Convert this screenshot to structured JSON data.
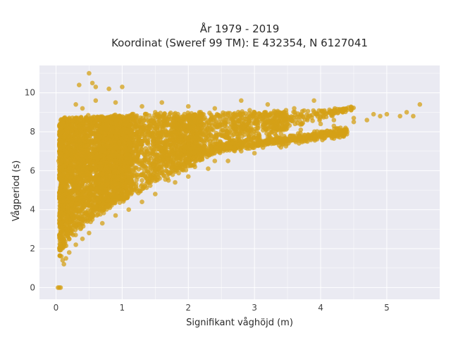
{
  "chart_data": {
    "type": "scatter",
    "title": "År 1979 - 2019",
    "subtitle": "Koordinat (Sweref 99 TM): E 432354, N 6127041",
    "xlabel": "Signifikant våghöjd (m)",
    "ylabel": "Vågperiod (s)",
    "xlim": [
      -0.25,
      5.8
    ],
    "ylim": [
      -0.6,
      11.4
    ],
    "x_ticks": [
      0,
      1,
      2,
      3,
      4,
      5
    ],
    "y_ticks": [
      0,
      2,
      4,
      6,
      8,
      10
    ],
    "x_tick_labels": [
      "0",
      "1",
      "2",
      "3",
      "4",
      "5"
    ],
    "y_tick_labels": [
      "0",
      "2",
      "4",
      "6",
      "8",
      "10"
    ],
    "grid": true,
    "marker_color": "#D4A017",
    "background_color": "#EAEAF2",
    "series": [
      {
        "points": [
          [
            0.03,
            0.0
          ],
          [
            0.05,
            0.0
          ],
          [
            0.07,
            0.0
          ],
          [
            0.08,
            1.6
          ],
          [
            0.06,
            2.4
          ],
          [
            0.05,
            3.3
          ],
          [
            0.06,
            7.9
          ],
          [
            0.07,
            8.2
          ],
          [
            0.05,
            7.0
          ],
          [
            0.04,
            6.5
          ],
          [
            0.1,
            1.4
          ],
          [
            0.12,
            1.2
          ],
          [
            0.15,
            1.5
          ],
          [
            0.2,
            1.8
          ],
          [
            0.3,
            2.2
          ],
          [
            0.4,
            2.5
          ],
          [
            0.5,
            2.8
          ],
          [
            0.7,
            3.3
          ],
          [
            0.9,
            3.7
          ],
          [
            1.1,
            4.0
          ],
          [
            1.3,
            4.4
          ],
          [
            1.5,
            4.8
          ],
          [
            1.8,
            5.4
          ],
          [
            2.0,
            5.7
          ],
          [
            2.3,
            6.1
          ],
          [
            2.6,
            6.5
          ],
          [
            3.0,
            6.9
          ],
          [
            3.4,
            7.2
          ],
          [
            3.8,
            7.5
          ],
          [
            4.0,
            7.8
          ],
          [
            4.1,
            7.9
          ],
          [
            4.3,
            8.2
          ],
          [
            4.5,
            8.5
          ],
          [
            4.7,
            8.6
          ],
          [
            4.9,
            8.8
          ],
          [
            5.0,
            8.9
          ],
          [
            5.2,
            8.8
          ],
          [
            5.4,
            8.8
          ],
          [
            5.5,
            9.4
          ],
          [
            5.3,
            9.0
          ],
          [
            4.8,
            8.9
          ],
          [
            4.5,
            8.7
          ],
          [
            0.5,
            11.0
          ],
          [
            0.55,
            10.5
          ],
          [
            0.6,
            10.3
          ],
          [
            0.35,
            10.4
          ],
          [
            0.8,
            10.2
          ],
          [
            1.0,
            10.3
          ],
          [
            0.3,
            9.4
          ],
          [
            0.4,
            9.2
          ],
          [
            0.6,
            9.6
          ],
          [
            0.9,
            9.5
          ],
          [
            1.3,
            9.3
          ],
          [
            1.6,
            9.5
          ],
          [
            2.0,
            9.3
          ],
          [
            2.4,
            9.2
          ],
          [
            2.8,
            9.6
          ],
          [
            3.2,
            9.4
          ],
          [
            3.6,
            9.2
          ],
          [
            3.9,
            9.6
          ],
          [
            3.0,
            9.0
          ],
          [
            3.4,
            8.9
          ],
          [
            2.2,
            8.8
          ],
          [
            1.5,
            9.0
          ],
          [
            4.2,
            8.3
          ],
          [
            4.4,
            8.0
          ],
          [
            0.2,
            6.0
          ],
          [
            0.25,
            5.0
          ],
          [
            0.3,
            7.5
          ],
          [
            0.35,
            4.0
          ],
          [
            0.4,
            3.5
          ],
          [
            0.5,
            6.5
          ],
          [
            0.6,
            5.5
          ],
          [
            0.7,
            7.0
          ],
          [
            0.8,
            4.5
          ],
          [
            0.9,
            6.0
          ],
          [
            1.0,
            5.0
          ],
          [
            1.1,
            7.5
          ],
          [
            1.2,
            6.5
          ],
          [
            1.3,
            5.5
          ],
          [
            1.4,
            8.0
          ],
          [
            1.5,
            6.0
          ],
          [
            1.6,
            7.0
          ],
          [
            1.7,
            5.5
          ],
          [
            1.8,
            8.0
          ],
          [
            1.9,
            6.5
          ],
          [
            2.0,
            7.5
          ],
          [
            2.1,
            6.2
          ],
          [
            2.2,
            8.0
          ],
          [
            2.3,
            7.0
          ],
          [
            2.4,
            6.5
          ],
          [
            2.5,
            7.8
          ],
          [
            2.6,
            7.2
          ],
          [
            2.7,
            8.2
          ],
          [
            2.8,
            7.0
          ],
          [
            2.9,
            7.6
          ],
          [
            3.0,
            8.0
          ],
          [
            3.1,
            7.3
          ],
          [
            3.2,
            8.3
          ],
          [
            3.3,
            7.6
          ],
          [
            3.4,
            7.9
          ],
          [
            3.5,
            8.4
          ],
          [
            3.6,
            7.7
          ],
          [
            3.7,
            8.1
          ],
          [
            3.8,
            8.6
          ],
          [
            3.9,
            7.9
          ],
          [
            4.0,
            8.4
          ],
          [
            4.2,
            8.6
          ],
          [
            0.1,
            3.0
          ],
          [
            0.1,
            4.0
          ],
          [
            0.15,
            5.5
          ],
          [
            0.15,
            6.8
          ],
          [
            0.2,
            2.5
          ],
          [
            0.2,
            7.2
          ],
          [
            0.45,
            8.0
          ],
          [
            0.55,
            8.4
          ],
          [
            0.65,
            7.8
          ],
          [
            0.75,
            8.6
          ],
          [
            0.85,
            8.2
          ],
          [
            0.95,
            8.8
          ],
          [
            1.05,
            8.4
          ],
          [
            1.15,
            8.7
          ],
          [
            1.25,
            8.3
          ],
          [
            1.35,
            8.9
          ],
          [
            1.45,
            8.6
          ],
          [
            1.55,
            8.8
          ]
        ]
      }
    ]
  }
}
